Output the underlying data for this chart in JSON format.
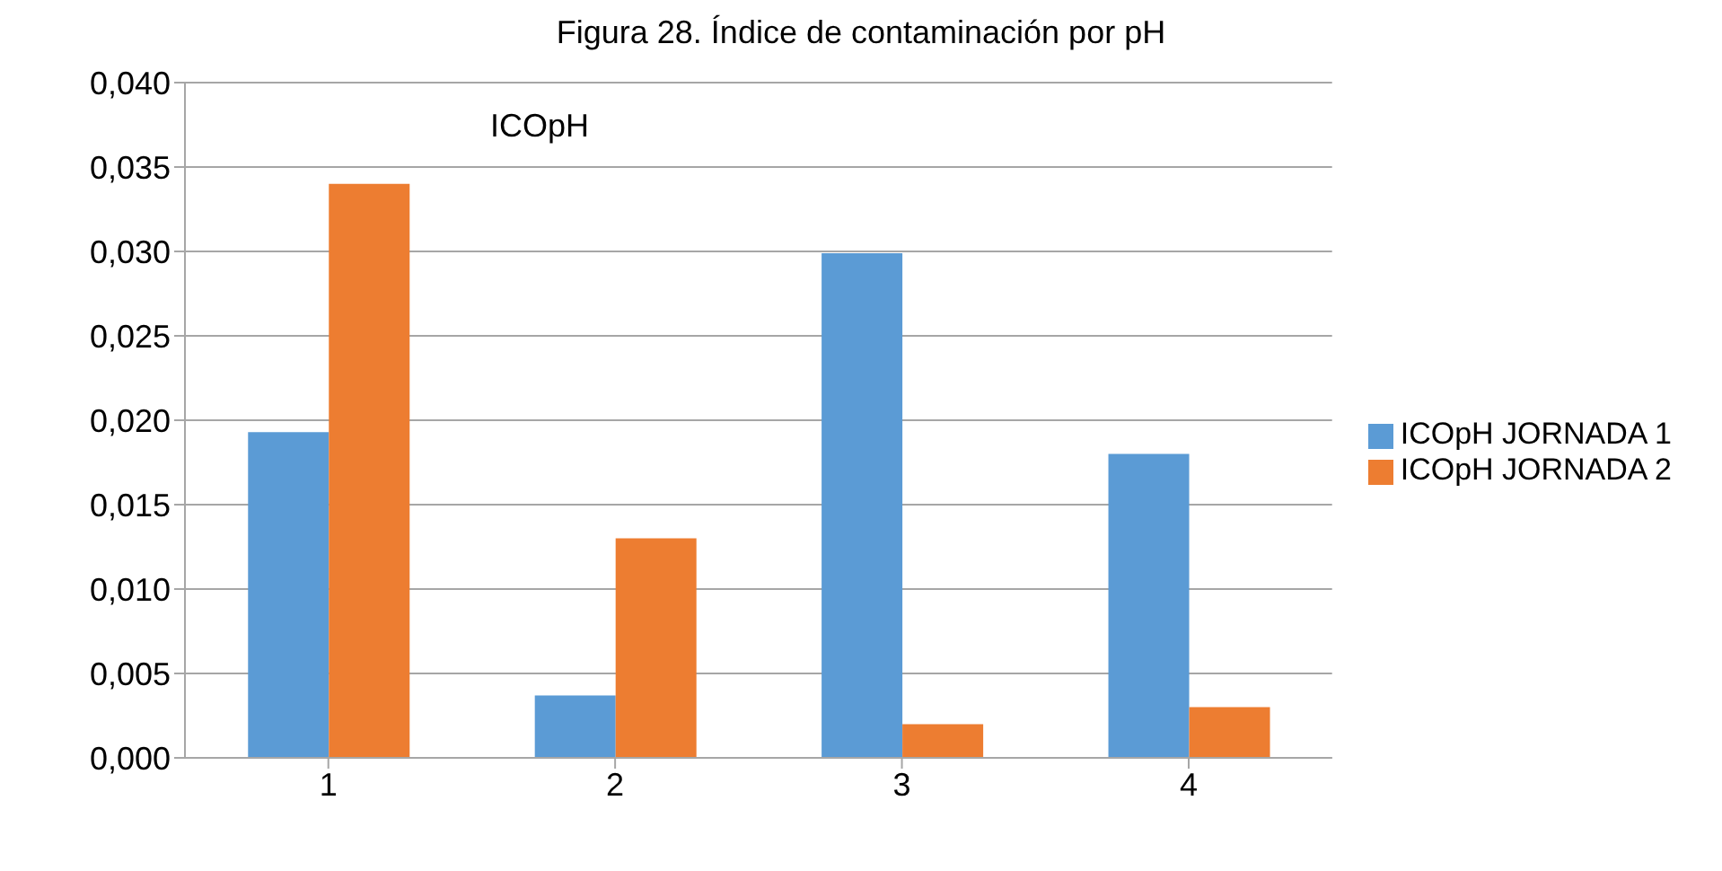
{
  "chart_data": {
    "type": "bar",
    "title": "Figura 28. Índice de contaminación por pH",
    "annotations": [
      "ICOpH"
    ],
    "categories": [
      "1",
      "2",
      "3",
      "4"
    ],
    "series": [
      {
        "name": "ICOpH JORNADA 1",
        "color": "#5b9bd5",
        "values": [
          0.0193,
          0.0037,
          0.0299,
          0.018
        ]
      },
      {
        "name": "ICOpH JORNADA 2",
        "color": "#ed7d31",
        "values": [
          0.034,
          0.013,
          0.002,
          0.003
        ]
      }
    ],
    "ylim": [
      0,
      0.04
    ],
    "yticks": [
      {
        "value": 0,
        "label": "0,000"
      },
      {
        "value": 0.005,
        "label": "0,005"
      },
      {
        "value": 0.01,
        "label": "0,010"
      },
      {
        "value": 0.015,
        "label": "0,015"
      },
      {
        "value": 0.02,
        "label": "0,020"
      },
      {
        "value": 0.025,
        "label": "0,025"
      },
      {
        "value": 0.03,
        "label": "0,030"
      },
      {
        "value": 0.035,
        "label": "0,035"
      },
      {
        "value": 0.04,
        "label": "0,040"
      }
    ],
    "grid": "y",
    "legend": "right"
  }
}
